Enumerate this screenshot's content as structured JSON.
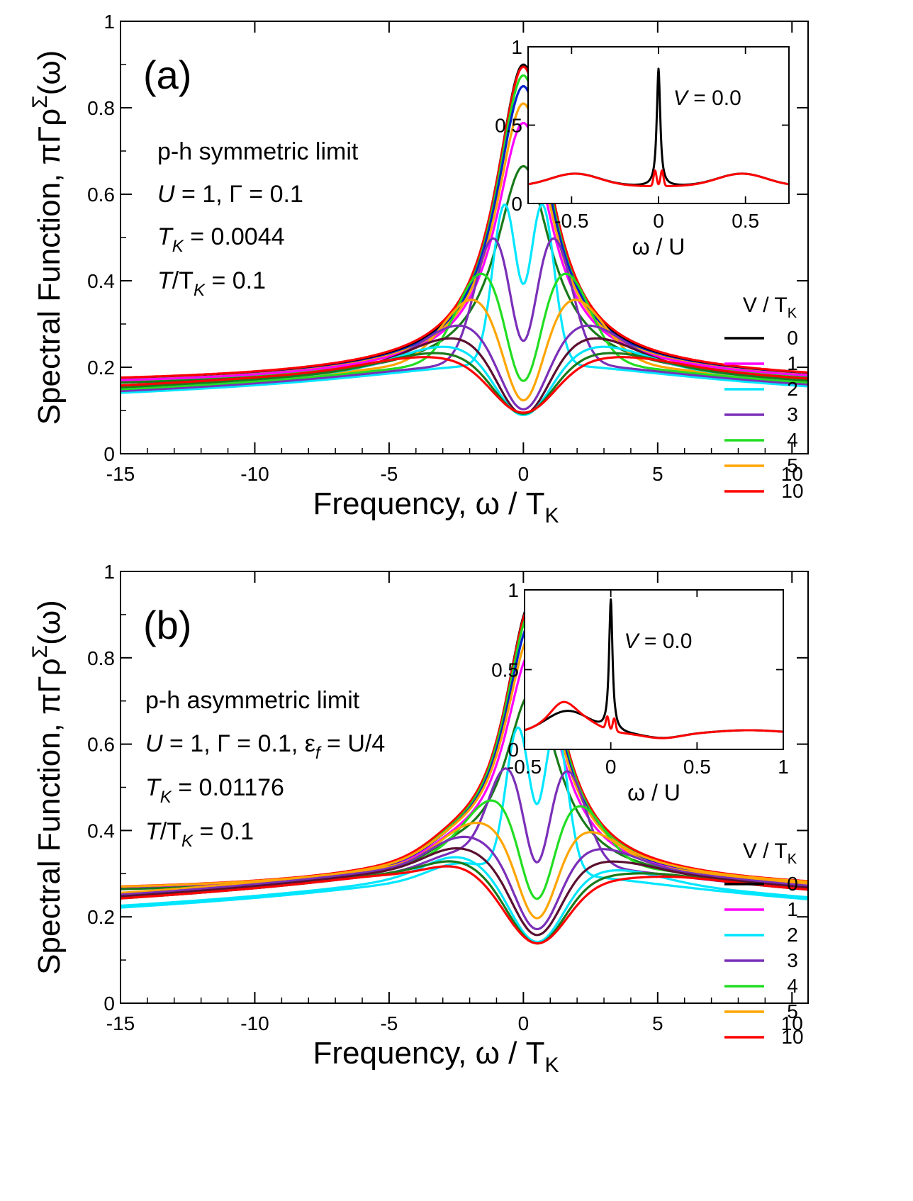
{
  "legend": {
    "title": "V / T",
    "title_sub": "K",
    "entries": [
      {
        "label": "0",
        "color": "#000000"
      },
      {
        "label": "1",
        "color": "#ff00ff"
      },
      {
        "label": "2",
        "color": "#00e6ff"
      },
      {
        "label": "3",
        "color": "#7a2fb8"
      },
      {
        "label": "4",
        "color": "#22dd22"
      },
      {
        "label": "5",
        "color": "#ffa500"
      },
      {
        "label": "10",
        "color": "#ff0000"
      }
    ]
  },
  "extra_colors": {
    "blue": "#0022cc",
    "darkgreen": "#1a7a1a",
    "maroon": "#5a1030"
  },
  "chart_data": [
    {
      "type": "line",
      "panel_label": "(a)",
      "xlabel": "Frequency, ω / T",
      "xlabel_sub": "K",
      "ylabel": "Spectral Function, πΓρ",
      "ylabel_sup": "Σ",
      "ylabel_suffix": "(ω)",
      "xlim": [
        -15,
        10.6
      ],
      "ylim": [
        0,
        1
      ],
      "xticks": [
        -15,
        -10,
        -5,
        0,
        5,
        10
      ],
      "yticks": [
        0,
        0.2,
        0.4,
        0.6,
        0.8,
        1
      ],
      "annotations": [
        {
          "text": "p-h symmetric limit"
        },
        {
          "text": "U = 1, Γ = 0.1"
        },
        {
          "text": "T",
          "sub": "K",
          "rest": " = 0.0044"
        },
        {
          "text": "T/T",
          "sub": "K",
          "rest": " = 0.1"
        }
      ],
      "series": [
        {
          "name": "0",
          "color": "#000000",
          "peak": 0.9,
          "dip": 0,
          "dip_w": 1,
          "bg": 0.155,
          "bg_w": 9
        },
        {
          "name": "",
          "color": "#ff0000",
          "peak": 0.895,
          "dip": 0,
          "dip_w": 1,
          "bg": 0.16,
          "bg_w": 9
        },
        {
          "name": "",
          "color": "#22dd22",
          "peak": 0.875,
          "dip": 0,
          "dip_w": 1,
          "bg": 0.15,
          "bg_w": 9
        },
        {
          "name": "",
          "color": "#0022cc",
          "peak": 0.85,
          "dip": 0,
          "dip_w": 1,
          "bg": 0.155,
          "bg_w": 9
        },
        {
          "name": "",
          "color": "#ffa500",
          "peak": 0.81,
          "dip": 0,
          "dip_w": 1,
          "bg": 0.155,
          "bg_w": 9
        },
        {
          "name": "1",
          "color": "#ff00ff",
          "peak": 0.765,
          "dip": 0,
          "dip_w": 1,
          "bg": 0.155,
          "bg_w": 9
        },
        {
          "name": "",
          "color": "#1a7a1a",
          "peak": 0.665,
          "dip": 0,
          "dip_w": 1,
          "bg": 0.15,
          "bg_w": 9
        },
        {
          "name": "2",
          "color": "#00e6ff",
          "peak": 0.575,
          "dip": 0.05,
          "dip_w": 0.7,
          "bg": 0.15,
          "bg_w": 9
        },
        {
          "name": "3",
          "color": "#7a2fb8",
          "peak": 0.5,
          "dip": 0.2,
          "dip_w": 1.1,
          "bg": 0.155,
          "bg_w": 9
        },
        {
          "name": "4",
          "color": "#22dd22",
          "peak": 0.42,
          "dip": 0.28,
          "dip_w": 1.5,
          "bg": 0.16,
          "bg_w": 9
        },
        {
          "name": "5",
          "color": "#ffa500",
          "peak": 0.36,
          "dip": 0.3,
          "dip_w": 1.8,
          "bg": 0.165,
          "bg_w": 9
        },
        {
          "name": "",
          "color": "#7a2fb8",
          "peak": 0.3,
          "dip": 0.28,
          "dip_w": 2.2,
          "bg": 0.17,
          "bg_w": 9
        },
        {
          "name": "",
          "color": "#5a1030",
          "peak": 0.27,
          "dip": 0.27,
          "dip_w": 2.4,
          "bg": 0.17,
          "bg_w": 9
        },
        {
          "name": "",
          "color": "#00e6ff",
          "peak": 0.25,
          "dip": 0.25,
          "dip_w": 2.6,
          "bg": 0.165,
          "bg_w": 9
        },
        {
          "name": "",
          "color": "#1a7a1a",
          "peak": 0.235,
          "dip": 0.23,
          "dip_w": 2.8,
          "bg": 0.165,
          "bg_w": 9
        },
        {
          "name": "10",
          "color": "#ff0000",
          "peak": 0.225,
          "dip": 0.22,
          "dip_w": 3.0,
          "bg": 0.17,
          "bg_w": 9
        }
      ],
      "inset": {
        "type": "line",
        "xlabel": "ω / U",
        "annotation": {
          "italic": "V",
          "rest": " = 0.0"
        },
        "xlim": [
          -0.75,
          0.75
        ],
        "ylim": [
          0,
          1
        ],
        "xticks": [
          -0.5,
          0,
          0.5
        ],
        "yticks": [
          0,
          0.5,
          1
        ],
        "series": [
          {
            "name": "V=0",
            "color": "#000000",
            "peak": 0.86,
            "center": 0
          },
          {
            "name": "V=10",
            "color": "#ff0000",
            "peak": 0.22,
            "center": 0
          }
        ]
      }
    },
    {
      "type": "line",
      "panel_label": "(b)",
      "xlabel": "Frequency, ω / T",
      "xlabel_sub": "K",
      "ylabel": "Spectral Function, πΓρ",
      "ylabel_sup": "Σ",
      "ylabel_suffix": "(ω)",
      "xlim": [
        -15,
        10.6
      ],
      "ylim": [
        0,
        1
      ],
      "xticks": [
        -15,
        -10,
        -5,
        0,
        5,
        10
      ],
      "yticks": [
        0,
        0.2,
        0.4,
        0.6,
        0.8,
        1
      ],
      "annotations": [
        {
          "text": "p-h asymmetric limit"
        },
        {
          "text": "U = 1, Γ = 0.1, ε",
          "sub": "f",
          "rest": " = U/4"
        },
        {
          "text": "T",
          "sub": "K",
          "rest": " = 0.01176"
        },
        {
          "text": "T/T",
          "sub": "K",
          "rest": " = 0.1"
        }
      ],
      "series": [
        {
          "name": "0",
          "color": "#000000",
          "peak": 0.93,
          "dip": 0,
          "dip_w": 1,
          "bg": 0.25,
          "bg_w": 9
        },
        {
          "name": "",
          "color": "#ff0000",
          "peak": 0.925,
          "dip": 0,
          "dip_w": 1,
          "bg": 0.255,
          "bg_w": 9
        },
        {
          "name": "",
          "color": "#22dd22",
          "peak": 0.91,
          "dip": 0,
          "dip_w": 1,
          "bg": 0.25,
          "bg_w": 9
        },
        {
          "name": "",
          "color": "#0022cc",
          "peak": 0.885,
          "dip": 0,
          "dip_w": 1,
          "bg": 0.25,
          "bg_w": 9
        },
        {
          "name": "",
          "color": "#ffa500",
          "peak": 0.855,
          "dip": 0,
          "dip_w": 1,
          "bg": 0.255,
          "bg_w": 9
        },
        {
          "name": "1",
          "color": "#ff00ff",
          "peak": 0.815,
          "dip": 0,
          "dip_w": 1,
          "bg": 0.25,
          "bg_w": 9
        },
        {
          "name": "",
          "color": "#1a7a1a",
          "peak": 0.72,
          "dip": 0,
          "dip_w": 1,
          "bg": 0.25,
          "bg_w": 9
        },
        {
          "name": "2",
          "color": "#00e6ff",
          "peak": 0.635,
          "dip": 0.06,
          "dip_w": 0.7,
          "bg": 0.245,
          "bg_w": 9
        },
        {
          "name": "3",
          "color": "#7a2fb8",
          "peak": 0.54,
          "dip": 0.21,
          "dip_w": 1.1,
          "bg": 0.27,
          "bg_w": 9
        },
        {
          "name": "4",
          "color": "#22dd22",
          "peak": 0.46,
          "dip": 0.28,
          "dip_w": 1.5,
          "bg": 0.28,
          "bg_w": 9
        },
        {
          "name": "5",
          "color": "#ffa500",
          "peak": 0.4,
          "dip": 0.3,
          "dip_w": 1.8,
          "bg": 0.285,
          "bg_w": 9
        },
        {
          "name": "",
          "color": "#7a2fb8",
          "peak": 0.36,
          "dip": 0.3,
          "dip_w": 2.1,
          "bg": 0.28,
          "bg_w": 9
        },
        {
          "name": "",
          "color": "#5a1030",
          "peak": 0.33,
          "dip": 0.29,
          "dip_w": 2.3,
          "bg": 0.275,
          "bg_w": 9
        },
        {
          "name": "",
          "color": "#00e6ff",
          "peak": 0.31,
          "dip": 0.28,
          "dip_w": 2.5,
          "bg": 0.25,
          "bg_w": 9
        },
        {
          "name": "",
          "color": "#1a7a1a",
          "peak": 0.3,
          "dip": 0.29,
          "dip_w": 2.7,
          "bg": 0.27,
          "bg_w": 9
        },
        {
          "name": "10",
          "color": "#ff0000",
          "peak": 0.29,
          "dip": 0.28,
          "dip_w": 2.9,
          "bg": 0.27,
          "bg_w": 9
        }
      ],
      "inset": {
        "type": "line",
        "xlabel": "ω / U",
        "annotation": {
          "italic": "V",
          "rest": " = 0.0"
        },
        "xlim": [
          -0.5,
          1
        ],
        "ylim": [
          0,
          1
        ],
        "xticks": [
          -0.5,
          0,
          0.5,
          1
        ],
        "yticks": [
          0,
          0.5,
          1
        ],
        "series": [
          {
            "name": "V=0",
            "color": "#000000",
            "peak": 0.94,
            "center": 0
          },
          {
            "name": "V=10",
            "color": "#ff0000",
            "peak": 0.3,
            "center": 0
          }
        ]
      }
    }
  ]
}
